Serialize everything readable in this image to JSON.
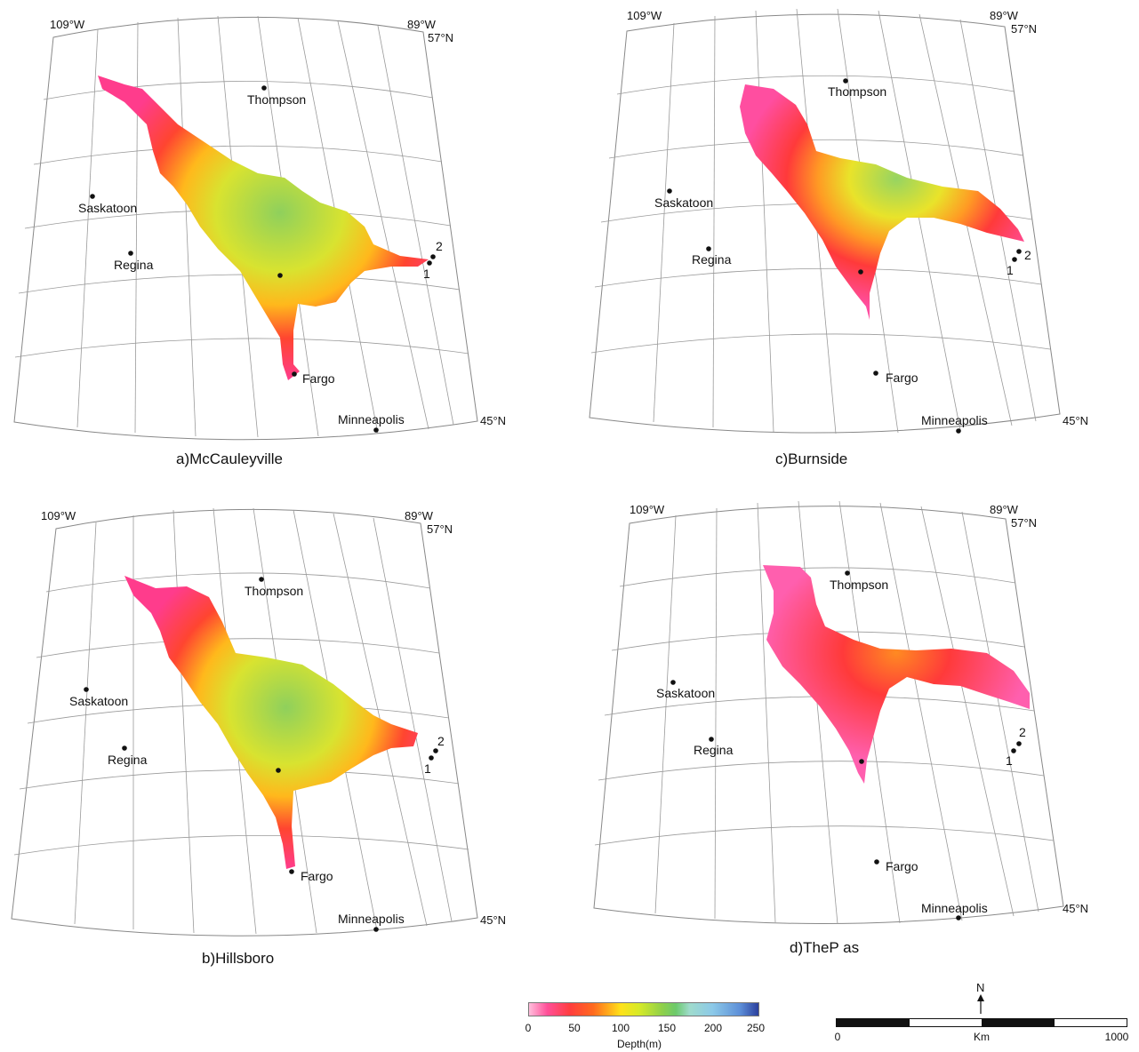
{
  "panels": [
    {
      "id": "a",
      "caption": "a)McCauleyville",
      "coords": {
        "west": "109°W",
        "east": "89°W",
        "north": "57°N",
        "south": "45°N"
      },
      "cities": [
        {
          "name": "Thompson",
          "dot": [
            297,
            99
          ],
          "text": [
            278,
            117
          ]
        },
        {
          "name": "Saskatoon",
          "dot": [
            104,
            221
          ],
          "text": [
            88,
            239
          ]
        },
        {
          "name": "Regina",
          "dot": [
            147,
            285
          ],
          "text": [
            128,
            303
          ]
        },
        {
          "name": "Fargo",
          "dot": [
            331,
            421
          ],
          "text": [
            340,
            431
          ]
        },
        {
          "name": "Minneapolis",
          "dot": [
            423,
            484
          ],
          "text": [
            380,
            477
          ]
        },
        {
          "name": "2",
          "dot": [
            487,
            289
          ],
          "text": [
            490,
            282
          ]
        },
        {
          "name": "1",
          "dot": [
            483,
            296
          ],
          "text": [
            476,
            313
          ]
        },
        {
          "name": "",
          "dot": [
            315,
            310
          ],
          "text": [
            0,
            0
          ]
        }
      ]
    },
    {
      "id": "b",
      "caption": "b)Hillsboro",
      "coords": {
        "west": "109°W",
        "east": "89°W",
        "north": "57°N",
        "south": "45°N"
      },
      "cities": [
        {
          "name": "Thompson",
          "dot": [
            294,
            652
          ],
          "text": [
            275,
            670
          ]
        },
        {
          "name": "Saskatoon",
          "dot": [
            97,
            776
          ],
          "text": [
            78,
            794
          ]
        },
        {
          "name": "Regina",
          "dot": [
            140,
            842
          ],
          "text": [
            121,
            860
          ]
        },
        {
          "name": "Fargo",
          "dot": [
            328,
            981
          ],
          "text": [
            338,
            991
          ]
        },
        {
          "name": "Minneapolis",
          "dot": [
            423,
            1046
          ],
          "text": [
            380,
            1039
          ]
        },
        {
          "name": "2",
          "dot": [
            490,
            845
          ],
          "text": [
            492,
            839
          ]
        },
        {
          "name": "1",
          "dot": [
            485,
            853
          ],
          "text": [
            477,
            870
          ]
        },
        {
          "name": "",
          "dot": [
            313,
            867
          ],
          "text": [
            0,
            0
          ]
        }
      ]
    },
    {
      "id": "c",
      "caption": "c)Burnside",
      "coords": {
        "west": "109°W",
        "east": "89°W",
        "north": "57°N",
        "south": "45°N"
      },
      "cities": [
        {
          "name": "Thompson",
          "dot": [
            951,
            91
          ],
          "text": [
            931,
            108
          ]
        },
        {
          "name": "Saskatoon",
          "dot": [
            753,
            215
          ],
          "text": [
            736,
            233
          ]
        },
        {
          "name": "Regina",
          "dot": [
            797,
            280
          ],
          "text": [
            778,
            297
          ]
        },
        {
          "name": "Fargo",
          "dot": [
            985,
            420
          ],
          "text": [
            996,
            430
          ]
        },
        {
          "name": "Minneapolis",
          "dot": [
            1078,
            485
          ],
          "text": [
            1036,
            478
          ]
        },
        {
          "name": "2",
          "dot": [
            1146,
            283
          ],
          "text": [
            1152,
            292
          ]
        },
        {
          "name": "1",
          "dot": [
            1141,
            292
          ],
          "text": [
            1132,
            309
          ]
        },
        {
          "name": "",
          "dot": [
            968,
            306
          ],
          "text": [
            0,
            0
          ]
        }
      ]
    },
    {
      "id": "d",
      "caption": "d)TheP as",
      "coords": {
        "west": "109°W",
        "east": "89°W",
        "north": "57°N",
        "south": "45°N"
      },
      "cities": [
        {
          "name": "Thompson",
          "dot": [
            953,
            645
          ],
          "text": [
            933,
            663
          ]
        },
        {
          "name": "Saskatoon",
          "dot": [
            757,
            768
          ],
          "text": [
            738,
            785
          ]
        },
        {
          "name": "Regina",
          "dot": [
            800,
            832
          ],
          "text": [
            780,
            849
          ]
        },
        {
          "name": "Fargo",
          "dot": [
            986,
            970
          ],
          "text": [
            996,
            980
          ]
        },
        {
          "name": "Minneapolis",
          "dot": [
            1078,
            1033
          ],
          "text": [
            1036,
            1027
          ]
        },
        {
          "name": "2",
          "dot": [
            1146,
            837
          ],
          "text": [
            1146,
            829
          ]
        },
        {
          "name": "1",
          "dot": [
            1140,
            845
          ],
          "text": [
            1131,
            861
          ]
        },
        {
          "name": "",
          "dot": [
            969,
            857
          ],
          "text": [
            0,
            0
          ]
        }
      ]
    }
  ],
  "legend": {
    "ticks": [
      "0",
      "50",
      "100",
      "150",
      "200",
      "250"
    ],
    "title": "Depth(m)",
    "range": [
      0,
      250
    ]
  },
  "scale_bar": {
    "north_label": "N",
    "start_label": "0",
    "unit_label": "Km",
    "end_label": "1000"
  }
}
